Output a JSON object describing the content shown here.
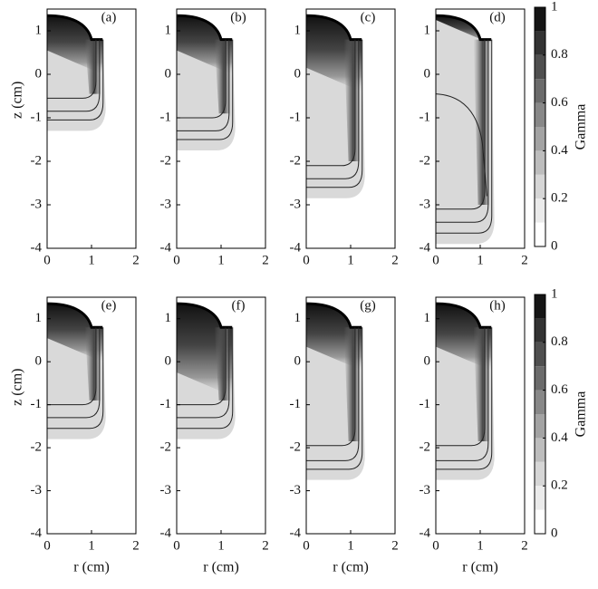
{
  "chart_data": [
    {
      "type": "heatmap",
      "annotation": "(a)",
      "ylabel": "z  (cm)",
      "xlim": [
        0,
        2
      ],
      "ylim": [
        -4,
        1.5
      ],
      "xticks": [
        0,
        1,
        2
      ],
      "yticks": [
        1,
        0,
        -1,
        -2,
        -3,
        -4
      ]
    },
    {
      "type": "heatmap",
      "annotation": "(b)",
      "xlim": [
        0,
        2
      ],
      "ylim": [
        -4,
        1.5
      ],
      "xticks": [
        0,
        1,
        2
      ],
      "yticks": [
        1,
        0,
        -1,
        -2,
        -3,
        -4
      ]
    },
    {
      "type": "heatmap",
      "annotation": "(c)",
      "xlim": [
        0,
        2
      ],
      "ylim": [
        -4,
        1.5
      ],
      "xticks": [
        0,
        1,
        2
      ],
      "yticks": [
        1,
        0,
        -1,
        -2,
        -3,
        -4
      ]
    },
    {
      "type": "heatmap",
      "annotation": "(d)",
      "xlim": [
        0,
        2
      ],
      "ylim": [
        -4,
        1.5
      ],
      "xticks": [
        0,
        1,
        2
      ],
      "yticks": [
        1,
        0,
        -1,
        -2,
        -3,
        -4
      ]
    },
    {
      "type": "heatmap",
      "annotation": "(e)",
      "ylabel": "z  (cm)",
      "xlabel": "r  (cm)",
      "xlim": [
        0,
        2
      ],
      "ylim": [
        -4,
        1.5
      ],
      "xticks": [
        0,
        1,
        2
      ],
      "yticks": [
        1,
        0,
        -1,
        -2,
        -3,
        -4
      ]
    },
    {
      "type": "heatmap",
      "annotation": "(f)",
      "xlabel": "r  (cm)",
      "xlim": [
        0,
        2
      ],
      "ylim": [
        -4,
        1.5
      ],
      "xticks": [
        0,
        1,
        2
      ],
      "yticks": [
        1,
        0,
        -1,
        -2,
        -3,
        -4
      ]
    },
    {
      "type": "heatmap",
      "annotation": "(g)",
      "xlabel": "r  (cm)",
      "xlim": [
        0,
        2
      ],
      "ylim": [
        -4,
        1.5
      ],
      "xticks": [
        0,
        1,
        2
      ],
      "yticks": [
        1,
        0,
        -1,
        -2,
        -3,
        -4
      ]
    },
    {
      "type": "heatmap",
      "annotation": "(h)",
      "xlabel": "r  (cm)",
      "xlim": [
        0,
        2
      ],
      "ylim": [
        -4,
        1.5
      ],
      "xticks": [
        0,
        1,
        2
      ],
      "yticks": [
        1,
        0,
        -1,
        -2,
        -3,
        -4
      ]
    }
  ],
  "colorbars": [
    {
      "label": "Gamma",
      "lim": [
        0,
        1
      ],
      "ticks": [
        0,
        0.2,
        0.4,
        0.6,
        0.8,
        1
      ],
      "colors": [
        "#ffffff",
        "#ebebeb",
        "#d6d6d6",
        "#bdbdbd",
        "#a3a3a3",
        "#888888",
        "#6b6b6b",
        "#4f4f4f",
        "#333333",
        "#151515"
      ]
    },
    {
      "label": "Gamma",
      "lim": [
        0,
        1
      ],
      "ticks": [
        0,
        0.2,
        0.4,
        0.6,
        0.8,
        1
      ],
      "colors": [
        "#ffffff",
        "#ebebeb",
        "#d6d6d6",
        "#bdbdbd",
        "#a3a3a3",
        "#888888",
        "#6b6b6b",
        "#4f4f4f",
        "#333333",
        "#151515"
      ]
    }
  ]
}
